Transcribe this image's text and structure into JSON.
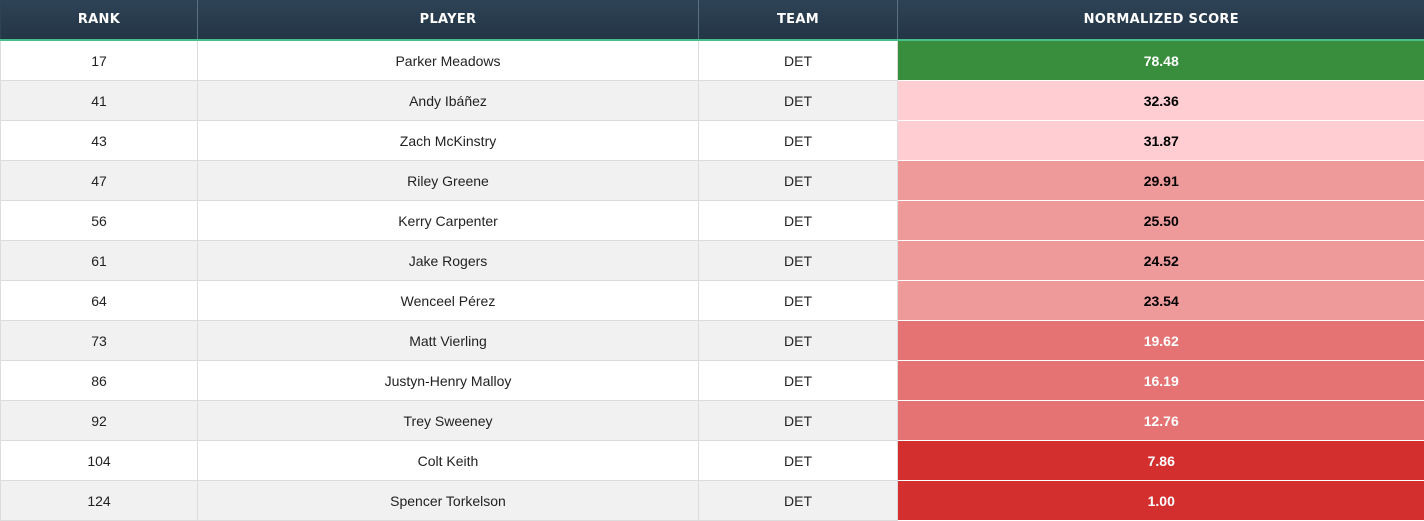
{
  "headers": {
    "rank": "RANK",
    "player": "PLAYER",
    "team": "TEAM",
    "score": "NORMALIZED SCORE"
  },
  "rows": [
    {
      "rank": "17",
      "player": "Parker Meadows",
      "team": "DET",
      "score": "78.48",
      "score_bg": "#388e3c",
      "score_fg": "#ffffff"
    },
    {
      "rank": "41",
      "player": "Andy Ibáñez",
      "team": "DET",
      "score": "32.36",
      "score_bg": "#ffcdd2",
      "score_fg": "#000000"
    },
    {
      "rank": "43",
      "player": "Zach McKinstry",
      "team": "DET",
      "score": "31.87",
      "score_bg": "#ffcdd2",
      "score_fg": "#000000"
    },
    {
      "rank": "47",
      "player": "Riley Greene",
      "team": "DET",
      "score": "29.91",
      "score_bg": "#ef9a9a",
      "score_fg": "#000000"
    },
    {
      "rank": "56",
      "player": "Kerry Carpenter",
      "team": "DET",
      "score": "25.50",
      "score_bg": "#ef9a9a",
      "score_fg": "#000000"
    },
    {
      "rank": "61",
      "player": "Jake Rogers",
      "team": "DET",
      "score": "24.52",
      "score_bg": "#ef9a9a",
      "score_fg": "#000000"
    },
    {
      "rank": "64",
      "player": "Wenceel Pérez",
      "team": "DET",
      "score": "23.54",
      "score_bg": "#ef9a9a",
      "score_fg": "#000000"
    },
    {
      "rank": "73",
      "player": "Matt Vierling",
      "team": "DET",
      "score": "19.62",
      "score_bg": "#e57373",
      "score_fg": "#ffffff"
    },
    {
      "rank": "86",
      "player": "Justyn-Henry Malloy",
      "team": "DET",
      "score": "16.19",
      "score_bg": "#e57373",
      "score_fg": "#ffffff"
    },
    {
      "rank": "92",
      "player": "Trey Sweeney",
      "team": "DET",
      "score": "12.76",
      "score_bg": "#e57373",
      "score_fg": "#ffffff"
    },
    {
      "rank": "104",
      "player": "Colt Keith",
      "team": "DET",
      "score": "7.86",
      "score_bg": "#d32f2f",
      "score_fg": "#ffffff"
    },
    {
      "rank": "124",
      "player": "Spencer Torkelson",
      "team": "DET",
      "score": "1.00",
      "score_bg": "#d32f2f",
      "score_fg": "#ffffff"
    }
  ]
}
